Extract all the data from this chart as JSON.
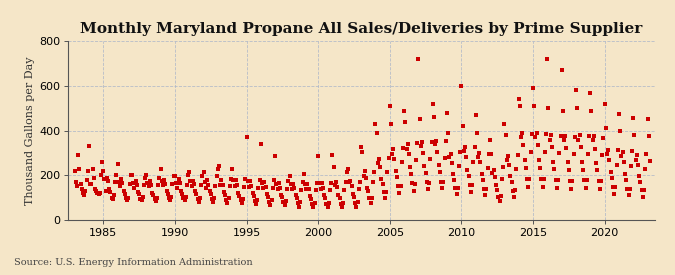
{
  "title": "Monthly Maryland Propane All Sales/Deliveries by Prime Supplier",
  "ylabel": "Thousand Gallons per Day",
  "source_text": "Source: U.S. Energy Information Administration",
  "background_color": "#f5e6c8",
  "marker_color": "#cc0000",
  "xlim_start": 1982.5,
  "xlim_end": 2023.5,
  "ylim": [
    0,
    800
  ],
  "yticks": [
    0,
    200,
    400,
    600,
    800
  ],
  "xticks": [
    1985,
    1990,
    1995,
    2000,
    2005,
    2010,
    2015,
    2020
  ],
  "title_fontsize": 11,
  "axis_fontsize": 8,
  "tick_fontsize": 8,
  "source_fontsize": 7,
  "data": [
    [
      1983.0,
      220
    ],
    [
      1983.08,
      170
    ],
    [
      1983.17,
      150
    ],
    [
      1983.25,
      290
    ],
    [
      1983.33,
      230
    ],
    [
      1983.42,
      160
    ],
    [
      1983.5,
      140
    ],
    [
      1983.58,
      120
    ],
    [
      1983.67,
      110
    ],
    [
      1983.75,
      130
    ],
    [
      1983.83,
      180
    ],
    [
      1983.92,
      220
    ],
    [
      1984.0,
      330
    ],
    [
      1984.08,
      160
    ],
    [
      1984.17,
      160
    ],
    [
      1984.25,
      230
    ],
    [
      1984.33,
      190
    ],
    [
      1984.42,
      140
    ],
    [
      1984.5,
      130
    ],
    [
      1984.58,
      120
    ],
    [
      1984.67,
      115
    ],
    [
      1984.75,
      120
    ],
    [
      1984.83,
      200
    ],
    [
      1984.92,
      260
    ],
    [
      1985.0,
      220
    ],
    [
      1985.08,
      185
    ],
    [
      1985.17,
      130
    ],
    [
      1985.25,
      190
    ],
    [
      1985.33,
      175
    ],
    [
      1985.42,
      140
    ],
    [
      1985.5,
      125
    ],
    [
      1985.58,
      100
    ],
    [
      1985.67,
      95
    ],
    [
      1985.75,
      110
    ],
    [
      1985.83,
      170
    ],
    [
      1985.92,
      200
    ],
    [
      1986.0,
      250
    ],
    [
      1986.08,
      170
    ],
    [
      1986.17,
      150
    ],
    [
      1986.25,
      185
    ],
    [
      1986.33,
      165
    ],
    [
      1986.42,
      130
    ],
    [
      1986.5,
      115
    ],
    [
      1986.58,
      100
    ],
    [
      1986.67,
      90
    ],
    [
      1986.75,
      100
    ],
    [
      1986.83,
      160
    ],
    [
      1986.92,
      200
    ],
    [
      1987.0,
      200
    ],
    [
      1987.08,
      165
    ],
    [
      1987.17,
      145
    ],
    [
      1987.25,
      175
    ],
    [
      1987.33,
      155
    ],
    [
      1987.42,
      125
    ],
    [
      1987.5,
      115
    ],
    [
      1987.58,
      95
    ],
    [
      1987.67,
      88
    ],
    [
      1987.75,
      105
    ],
    [
      1987.83,
      155
    ],
    [
      1987.92,
      190
    ],
    [
      1988.0,
      200
    ],
    [
      1988.08,
      165
    ],
    [
      1988.17,
      150
    ],
    [
      1988.25,
      175
    ],
    [
      1988.33,
      155
    ],
    [
      1988.42,
      120
    ],
    [
      1988.5,
      110
    ],
    [
      1988.58,
      95
    ],
    [
      1988.67,
      85
    ],
    [
      1988.75,
      100
    ],
    [
      1988.83,
      155
    ],
    [
      1988.92,
      190
    ],
    [
      1989.0,
      230
    ],
    [
      1989.08,
      175
    ],
    [
      1989.17,
      155
    ],
    [
      1989.25,
      180
    ],
    [
      1989.33,
      160
    ],
    [
      1989.42,
      130
    ],
    [
      1989.5,
      115
    ],
    [
      1989.58,
      100
    ],
    [
      1989.67,
      88
    ],
    [
      1989.75,
      105
    ],
    [
      1989.83,
      160
    ],
    [
      1989.92,
      195
    ],
    [
      1990.0,
      195
    ],
    [
      1990.08,
      165
    ],
    [
      1990.17,
      145
    ],
    [
      1990.25,
      185
    ],
    [
      1990.33,
      165
    ],
    [
      1990.42,
      130
    ],
    [
      1990.5,
      115
    ],
    [
      1990.58,
      100
    ],
    [
      1990.67,
      88
    ],
    [
      1990.75,
      105
    ],
    [
      1990.83,
      155
    ],
    [
      1990.92,
      200
    ],
    [
      1991.0,
      215
    ],
    [
      1991.08,
      175
    ],
    [
      1991.17,
      150
    ],
    [
      1991.25,
      175
    ],
    [
      1991.33,
      160
    ],
    [
      1991.42,
      130
    ],
    [
      1991.5,
      115
    ],
    [
      1991.58,
      95
    ],
    [
      1991.67,
      80
    ],
    [
      1991.75,
      100
    ],
    [
      1991.83,
      155
    ],
    [
      1991.92,
      195
    ],
    [
      1992.0,
      215
    ],
    [
      1992.08,
      170
    ],
    [
      1992.17,
      145
    ],
    [
      1992.25,
      180
    ],
    [
      1992.33,
      158
    ],
    [
      1992.42,
      128
    ],
    [
      1992.5,
      115
    ],
    [
      1992.58,
      95
    ],
    [
      1992.67,
      82
    ],
    [
      1992.75,
      98
    ],
    [
      1992.83,
      153
    ],
    [
      1992.92,
      195
    ],
    [
      1993.0,
      230
    ],
    [
      1993.08,
      240
    ],
    [
      1993.17,
      155
    ],
    [
      1993.25,
      180
    ],
    [
      1993.33,
      158
    ],
    [
      1993.42,
      125
    ],
    [
      1993.5,
      110
    ],
    [
      1993.58,
      90
    ],
    [
      1993.67,
      78
    ],
    [
      1993.75,
      97
    ],
    [
      1993.83,
      150
    ],
    [
      1993.92,
      185
    ],
    [
      1994.0,
      230
    ],
    [
      1994.08,
      178
    ],
    [
      1994.17,
      150
    ],
    [
      1994.25,
      180
    ],
    [
      1994.33,
      155
    ],
    [
      1994.42,
      120
    ],
    [
      1994.5,
      108
    ],
    [
      1994.58,
      88
    ],
    [
      1994.67,
      75
    ],
    [
      1994.75,
      93
    ],
    [
      1994.83,
      148
    ],
    [
      1994.92,
      182
    ],
    [
      1995.0,
      370
    ],
    [
      1995.08,
      175
    ],
    [
      1995.17,
      148
    ],
    [
      1995.25,
      175
    ],
    [
      1995.33,
      150
    ],
    [
      1995.42,
      120
    ],
    [
      1995.5,
      107
    ],
    [
      1995.58,
      85
    ],
    [
      1995.67,
      70
    ],
    [
      1995.75,
      90
    ],
    [
      1995.83,
      145
    ],
    [
      1995.92,
      180
    ],
    [
      1996.0,
      340
    ],
    [
      1996.08,
      165
    ],
    [
      1996.17,
      143
    ],
    [
      1996.25,
      170
    ],
    [
      1996.33,
      148
    ],
    [
      1996.42,
      115
    ],
    [
      1996.5,
      105
    ],
    [
      1996.58,
      82
    ],
    [
      1996.67,
      68
    ],
    [
      1996.75,
      88
    ],
    [
      1996.83,
      143
    ],
    [
      1996.92,
      178
    ],
    [
      1997.0,
      285
    ],
    [
      1997.08,
      162
    ],
    [
      1997.17,
      140
    ],
    [
      1997.25,
      167
    ],
    [
      1997.33,
      145
    ],
    [
      1997.42,
      113
    ],
    [
      1997.5,
      102
    ],
    [
      1997.58,
      80
    ],
    [
      1997.67,
      65
    ],
    [
      1997.75,
      85
    ],
    [
      1997.83,
      140
    ],
    [
      1997.92,
      175
    ],
    [
      1998.0,
      195
    ],
    [
      1998.08,
      160
    ],
    [
      1998.17,
      137
    ],
    [
      1998.25,
      163
    ],
    [
      1998.33,
      142
    ],
    [
      1998.42,
      110
    ],
    [
      1998.5,
      98
    ],
    [
      1998.58,
      75
    ],
    [
      1998.67,
      60
    ],
    [
      1998.75,
      80
    ],
    [
      1998.83,
      135
    ],
    [
      1998.92,
      168
    ],
    [
      1999.0,
      205
    ],
    [
      1999.08,
      160
    ],
    [
      1999.17,
      138
    ],
    [
      1999.25,
      160
    ],
    [
      1999.33,
      140
    ],
    [
      1999.42,
      108
    ],
    [
      1999.5,
      95
    ],
    [
      1999.58,
      72
    ],
    [
      1999.67,
      57
    ],
    [
      1999.75,
      78
    ],
    [
      1999.83,
      133
    ],
    [
      1999.92,
      165
    ],
    [
      2000.0,
      285
    ],
    [
      2000.08,
      165
    ],
    [
      2000.17,
      140
    ],
    [
      2000.25,
      165
    ],
    [
      2000.33,
      143
    ],
    [
      2000.42,
      110
    ],
    [
      2000.5,
      97
    ],
    [
      2000.58,
      73
    ],
    [
      2000.67,
      57
    ],
    [
      2000.75,
      78
    ],
    [
      2000.83,
      133
    ],
    [
      2000.92,
      165
    ],
    [
      2001.0,
      290
    ],
    [
      2001.08,
      235
    ],
    [
      2001.17,
      155
    ],
    [
      2001.25,
      170
    ],
    [
      2001.33,
      148
    ],
    [
      2001.42,
      113
    ],
    [
      2001.5,
      100
    ],
    [
      2001.58,
      73
    ],
    [
      2001.67,
      57
    ],
    [
      2001.75,
      78
    ],
    [
      2001.83,
      135
    ],
    [
      2001.92,
      168
    ],
    [
      2002.0,
      215
    ],
    [
      2002.08,
      230
    ],
    [
      2002.17,
      170
    ],
    [
      2002.25,
      175
    ],
    [
      2002.33,
      150
    ],
    [
      2002.42,
      115
    ],
    [
      2002.5,
      102
    ],
    [
      2002.58,
      75
    ],
    [
      2002.67,
      57
    ],
    [
      2002.75,
      80
    ],
    [
      2002.83,
      140
    ],
    [
      2002.92,
      170
    ],
    [
      2003.0,
      325
    ],
    [
      2003.08,
      305
    ],
    [
      2003.17,
      195
    ],
    [
      2003.25,
      220
    ],
    [
      2003.33,
      190
    ],
    [
      2003.42,
      145
    ],
    [
      2003.5,
      128
    ],
    [
      2003.58,
      97
    ],
    [
      2003.67,
      77
    ],
    [
      2003.75,
      100
    ],
    [
      2003.83,
      170
    ],
    [
      2003.92,
      215
    ],
    [
      2004.0,
      430
    ],
    [
      2004.08,
      390
    ],
    [
      2004.17,
      255
    ],
    [
      2004.25,
      275
    ],
    [
      2004.33,
      235
    ],
    [
      2004.42,
      185
    ],
    [
      2004.5,
      162
    ],
    [
      2004.58,
      127
    ],
    [
      2004.67,
      100
    ],
    [
      2004.75,
      127
    ],
    [
      2004.83,
      215
    ],
    [
      2004.92,
      278
    ],
    [
      2005.0,
      510
    ],
    [
      2005.08,
      430
    ],
    [
      2005.17,
      295
    ],
    [
      2005.25,
      320
    ],
    [
      2005.33,
      275
    ],
    [
      2005.42,
      220
    ],
    [
      2005.5,
      192
    ],
    [
      2005.58,
      150
    ],
    [
      2005.67,
      120
    ],
    [
      2005.75,
      150
    ],
    [
      2005.83,
      258
    ],
    [
      2005.92,
      322
    ],
    [
      2006.0,
      490
    ],
    [
      2006.08,
      440
    ],
    [
      2006.17,
      320
    ],
    [
      2006.25,
      340
    ],
    [
      2006.33,
      295
    ],
    [
      2006.42,
      235
    ],
    [
      2006.5,
      205
    ],
    [
      2006.58,
      165
    ],
    [
      2006.67,
      132
    ],
    [
      2006.75,
      160
    ],
    [
      2006.83,
      270
    ],
    [
      2006.92,
      345
    ],
    [
      2007.0,
      720
    ],
    [
      2007.08,
      450
    ],
    [
      2007.17,
      330
    ],
    [
      2007.25,
      350
    ],
    [
      2007.33,
      300
    ],
    [
      2007.42,
      240
    ],
    [
      2007.5,
      210
    ],
    [
      2007.58,
      168
    ],
    [
      2007.67,
      138
    ],
    [
      2007.75,
      165
    ],
    [
      2007.83,
      275
    ],
    [
      2007.92,
      350
    ],
    [
      2008.0,
      520
    ],
    [
      2008.08,
      460
    ],
    [
      2008.17,
      340
    ],
    [
      2008.25,
      355
    ],
    [
      2008.33,
      305
    ],
    [
      2008.42,
      245
    ],
    [
      2008.5,
      215
    ],
    [
      2008.58,
      172
    ],
    [
      2008.67,
      145
    ],
    [
      2008.75,
      170
    ],
    [
      2008.83,
      278
    ],
    [
      2008.92,
      352
    ],
    [
      2009.0,
      480
    ],
    [
      2009.08,
      390
    ],
    [
      2009.17,
      280
    ],
    [
      2009.25,
      295
    ],
    [
      2009.33,
      255
    ],
    [
      2009.42,
      205
    ],
    [
      2009.5,
      180
    ],
    [
      2009.58,
      143
    ],
    [
      2009.67,
      117
    ],
    [
      2009.75,
      143
    ],
    [
      2009.83,
      240
    ],
    [
      2009.92,
      305
    ],
    [
      2010.0,
      600
    ],
    [
      2010.08,
      420
    ],
    [
      2010.17,
      310
    ],
    [
      2010.25,
      325
    ],
    [
      2010.33,
      280
    ],
    [
      2010.42,
      225
    ],
    [
      2010.5,
      196
    ],
    [
      2010.58,
      155
    ],
    [
      2010.67,
      127
    ],
    [
      2010.75,
      155
    ],
    [
      2010.83,
      258
    ],
    [
      2010.92,
      325
    ],
    [
      2011.0,
      470
    ],
    [
      2011.08,
      390
    ],
    [
      2011.17,
      280
    ],
    [
      2011.25,
      300
    ],
    [
      2011.33,
      258
    ],
    [
      2011.42,
      205
    ],
    [
      2011.5,
      178
    ],
    [
      2011.58,
      140
    ],
    [
      2011.67,
      113
    ],
    [
      2011.75,
      140
    ],
    [
      2011.83,
      232
    ],
    [
      2011.92,
      295
    ],
    [
      2012.0,
      360
    ],
    [
      2012.08,
      295
    ],
    [
      2012.17,
      210
    ],
    [
      2012.25,
      225
    ],
    [
      2012.33,
      193
    ],
    [
      2012.42,
      155
    ],
    [
      2012.5,
      135
    ],
    [
      2012.58,
      105
    ],
    [
      2012.67,
      83
    ],
    [
      2012.75,
      108
    ],
    [
      2012.83,
      183
    ],
    [
      2012.92,
      235
    ],
    [
      2013.0,
      430
    ],
    [
      2013.08,
      380
    ],
    [
      2013.17,
      270
    ],
    [
      2013.25,
      285
    ],
    [
      2013.33,
      245
    ],
    [
      2013.42,
      195
    ],
    [
      2013.5,
      168
    ],
    [
      2013.58,
      132
    ],
    [
      2013.67,
      105
    ],
    [
      2013.75,
      135
    ],
    [
      2013.83,
      228
    ],
    [
      2013.92,
      290
    ],
    [
      2014.0,
      540
    ],
    [
      2014.08,
      510
    ],
    [
      2014.17,
      370
    ],
    [
      2014.25,
      390
    ],
    [
      2014.33,
      335
    ],
    [
      2014.42,
      268
    ],
    [
      2014.5,
      233
    ],
    [
      2014.58,
      183
    ],
    [
      2014.67,
      147
    ],
    [
      2014.75,
      183
    ],
    [
      2014.83,
      305
    ],
    [
      2014.92,
      385
    ],
    [
      2015.0,
      590
    ],
    [
      2015.08,
      510
    ],
    [
      2015.17,
      370
    ],
    [
      2015.25,
      390
    ],
    [
      2015.33,
      335
    ],
    [
      2015.42,
      268
    ],
    [
      2015.5,
      233
    ],
    [
      2015.58,
      183
    ],
    [
      2015.67,
      147
    ],
    [
      2015.75,
      183
    ],
    [
      2015.83,
      305
    ],
    [
      2015.92,
      385
    ],
    [
      2016.0,
      720
    ],
    [
      2016.08,
      500
    ],
    [
      2016.17,
      360
    ],
    [
      2016.25,
      380
    ],
    [
      2016.33,
      325
    ],
    [
      2016.42,
      260
    ],
    [
      2016.5,
      227
    ],
    [
      2016.58,
      178
    ],
    [
      2016.67,
      143
    ],
    [
      2016.75,
      178
    ],
    [
      2016.83,
      298
    ],
    [
      2016.92,
      376
    ],
    [
      2017.0,
      670
    ],
    [
      2017.08,
      490
    ],
    [
      2017.17,
      360
    ],
    [
      2017.25,
      378
    ],
    [
      2017.33,
      322
    ],
    [
      2017.42,
      258
    ],
    [
      2017.5,
      225
    ],
    [
      2017.58,
      175
    ],
    [
      2017.67,
      140
    ],
    [
      2017.75,
      175
    ],
    [
      2017.83,
      295
    ],
    [
      2017.92,
      372
    ],
    [
      2018.0,
      580
    ],
    [
      2018.08,
      500
    ],
    [
      2018.17,
      360
    ],
    [
      2018.25,
      380
    ],
    [
      2018.33,
      325
    ],
    [
      2018.42,
      260
    ],
    [
      2018.5,
      225
    ],
    [
      2018.58,
      177
    ],
    [
      2018.67,
      142
    ],
    [
      2018.75,
      177
    ],
    [
      2018.83,
      297
    ],
    [
      2018.92,
      375
    ],
    [
      2019.0,
      570
    ],
    [
      2019.08,
      490
    ],
    [
      2019.17,
      358
    ],
    [
      2019.25,
      376
    ],
    [
      2019.33,
      320
    ],
    [
      2019.42,
      255
    ],
    [
      2019.5,
      222
    ],
    [
      2019.58,
      173
    ],
    [
      2019.67,
      138
    ],
    [
      2019.75,
      173
    ],
    [
      2019.83,
      292
    ],
    [
      2019.92,
      368
    ],
    [
      2020.0,
      520
    ],
    [
      2020.08,
      410
    ],
    [
      2020.17,
      295
    ],
    [
      2020.25,
      315
    ],
    [
      2020.33,
      270
    ],
    [
      2020.42,
      215
    ],
    [
      2020.5,
      186
    ],
    [
      2020.58,
      146
    ],
    [
      2020.67,
      116
    ],
    [
      2020.75,
      146
    ],
    [
      2020.83,
      248
    ],
    [
      2020.92,
      315
    ],
    [
      2021.0,
      475
    ],
    [
      2021.08,
      400
    ],
    [
      2021.17,
      285
    ],
    [
      2021.25,
      305
    ],
    [
      2021.33,
      260
    ],
    [
      2021.42,
      207
    ],
    [
      2021.5,
      179
    ],
    [
      2021.58,
      140
    ],
    [
      2021.67,
      110
    ],
    [
      2021.75,
      140
    ],
    [
      2021.83,
      240
    ],
    [
      2021.92,
      307
    ],
    [
      2022.0,
      455
    ],
    [
      2022.08,
      380
    ],
    [
      2022.17,
      270
    ],
    [
      2022.25,
      290
    ],
    [
      2022.33,
      248
    ],
    [
      2022.42,
      198
    ],
    [
      2022.5,
      170
    ],
    [
      2022.58,
      133
    ],
    [
      2022.67,
      105
    ],
    [
      2022.75,
      133
    ],
    [
      2022.83,
      230
    ],
    [
      2022.92,
      295
    ],
    [
      2023.0,
      450
    ],
    [
      2023.08,
      375
    ],
    [
      2023.17,
      265
    ]
  ]
}
